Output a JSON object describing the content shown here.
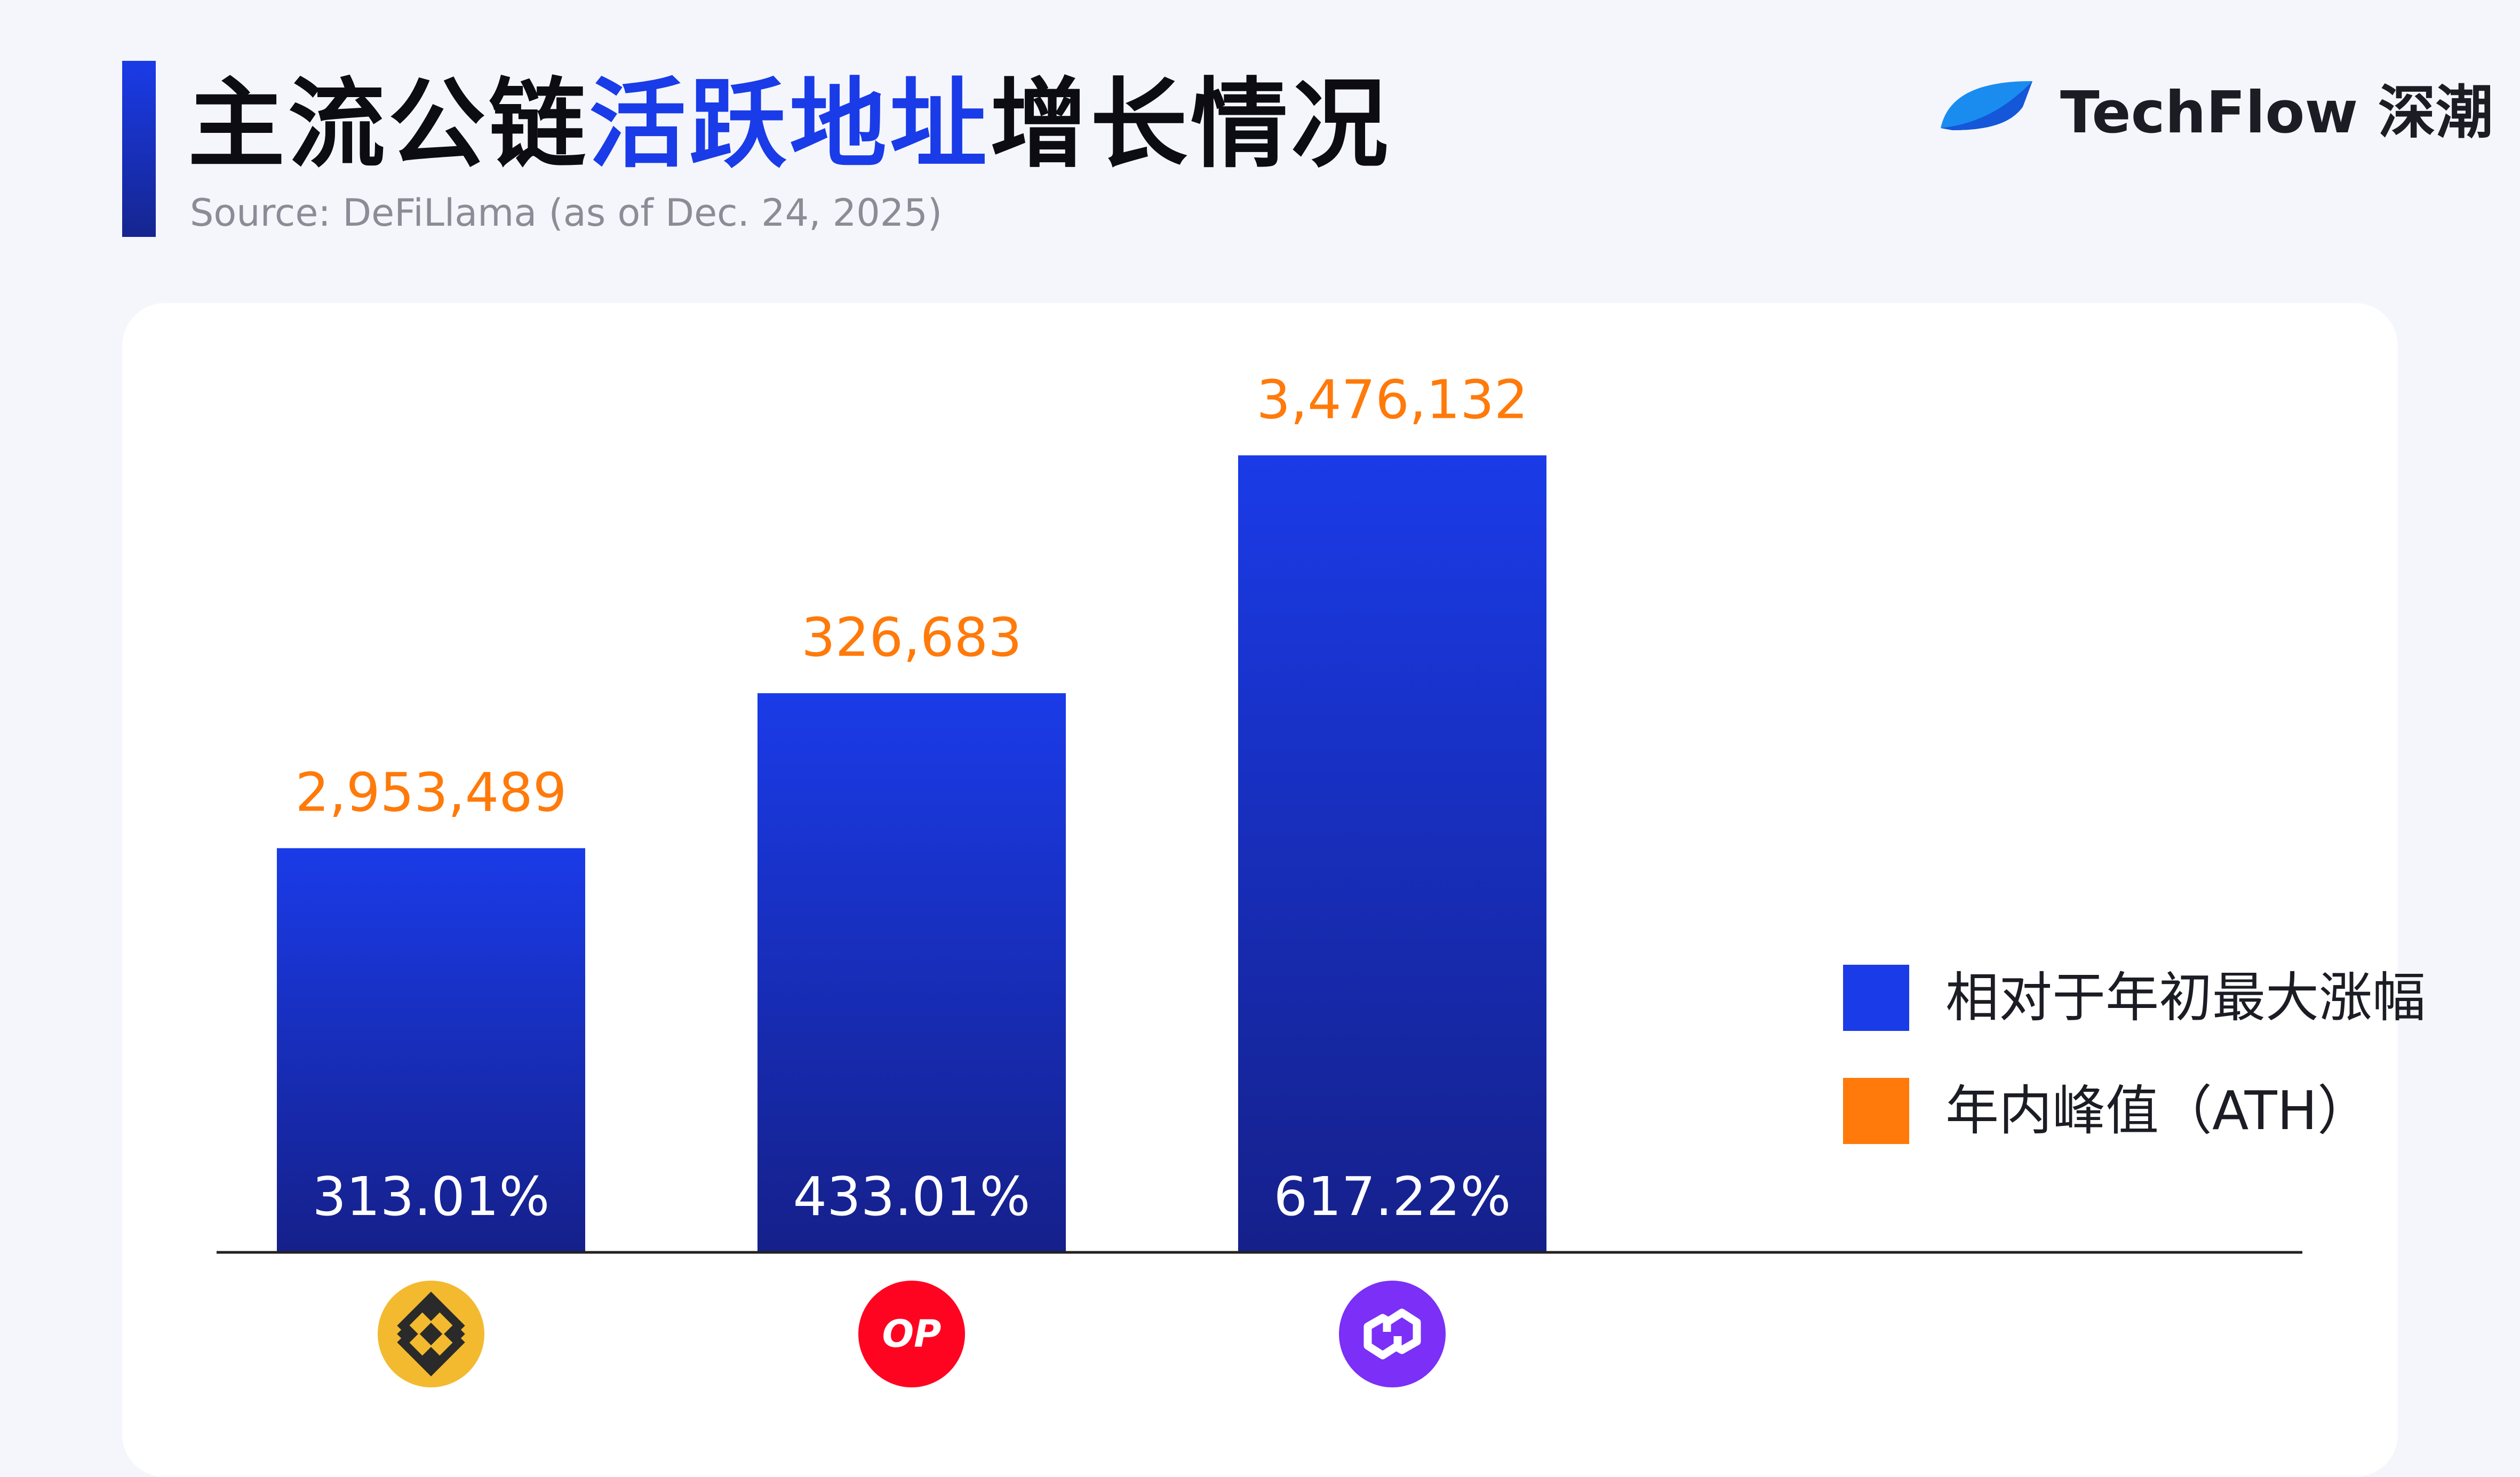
{
  "header": {
    "title_parts": [
      "主流公链",
      "活跃地址",
      "增长情况"
    ],
    "source": "Source: DeFiLlama (as of Dec. 24, 2025)"
  },
  "brand": {
    "name": "TechFlow 深潮",
    "logo_icon": "techflow-logo-icon"
  },
  "colors": {
    "accent": "#1a3be8",
    "bar_top": "#1a3be8",
    "bar_bottom": "#15208a",
    "ath_label": "#ff7a0a",
    "title_text": "#0c0c12",
    "pct_label": "#ffffff"
  },
  "chart_data": {
    "type": "bar",
    "categories": [
      "BNB Chain",
      "Optimism",
      "Polygon"
    ],
    "category_icons": [
      "bnb-logo-icon",
      "optimism-logo-icon",
      "polygon-logo-icon"
    ],
    "category_icon_colors": [
      "#f3ba2f",
      "#ff0420",
      "#7b2ff7"
    ],
    "series": [
      {
        "name": "相对于年初最大涨幅",
        "values": [
          313.01,
          433.01,
          617.22
        ],
        "labels": [
          "313.01%",
          "433.01%",
          "617.22%"
        ],
        "color": "#1a3be8"
      },
      {
        "name": "年内峰值（ATH）",
        "values": [
          2953489,
          326683,
          3476132
        ],
        "labels": [
          "2,953,489",
          "326,683",
          "3,476,132"
        ],
        "color": "#ff7a0a"
      }
    ],
    "ylim": [
      0,
      700
    ],
    "grid": false,
    "legend_position": "right"
  }
}
